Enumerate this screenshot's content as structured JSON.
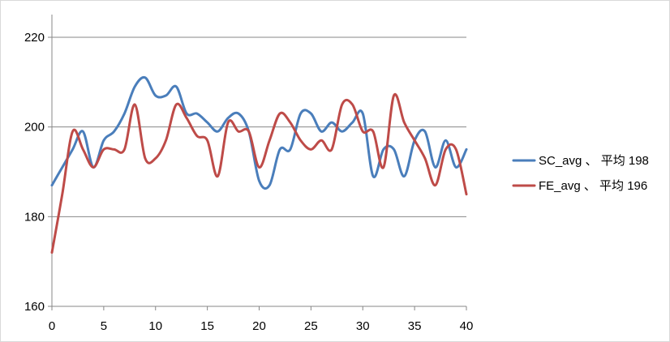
{
  "chart_data": {
    "type": "line",
    "title": "",
    "xlabel": "",
    "ylabel": "",
    "xlim": [
      0,
      40
    ],
    "ylim": [
      160,
      220
    ],
    "x_ticks": [
      0,
      5,
      10,
      15,
      20,
      25,
      30,
      35,
      40
    ],
    "y_ticks": [
      160,
      180,
      200,
      220
    ],
    "grid": "horizontal",
    "legend_position": "right",
    "x": [
      0,
      1,
      2,
      3,
      4,
      5,
      6,
      7,
      8,
      9,
      10,
      11,
      12,
      13,
      14,
      15,
      16,
      17,
      18,
      19,
      20,
      21,
      22,
      23,
      24,
      25,
      26,
      27,
      28,
      29,
      30,
      31,
      32,
      33,
      34,
      35,
      36,
      37,
      38,
      39,
      40
    ],
    "series": [
      {
        "name": "SC_avg 、 平均 198",
        "color": "#4a7ebb",
        "values": [
          187,
          191,
          195,
          199,
          191,
          197,
          199,
          203,
          209,
          211,
          207,
          207,
          209,
          203,
          203,
          201,
          199,
          202,
          203,
          199,
          188,
          187,
          195,
          195,
          203,
          203,
          199,
          201,
          199,
          201,
          203,
          189,
          195,
          195,
          189,
          197,
          199,
          191,
          197,
          191,
          195
        ]
      },
      {
        "name": "FE_avg 、 平均 196",
        "color": "#be4b48",
        "values": [
          172,
          185,
          199,
          195,
          191,
          195,
          195,
          195,
          205,
          193,
          193,
          197,
          205,
          202,
          198,
          197,
          189,
          201,
          199,
          199,
          191,
          197,
          203,
          201,
          197,
          195,
          197,
          195,
          205,
          205,
          199,
          199,
          191,
          207,
          201,
          197,
          193,
          187,
          195,
          195,
          185
        ]
      }
    ]
  }
}
